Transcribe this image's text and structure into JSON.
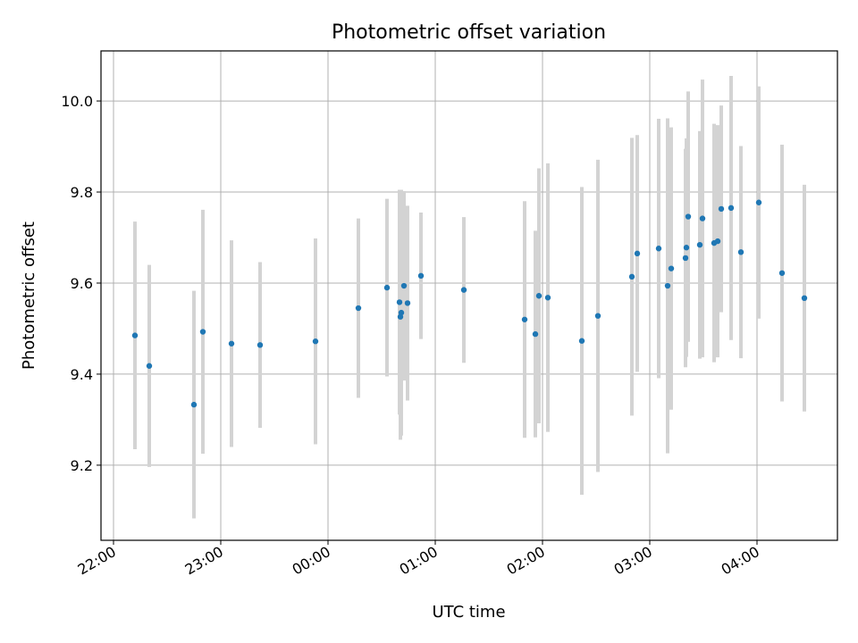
{
  "chart_data": {
    "type": "scatter",
    "title": "Photometric offset variation",
    "xlabel": "UTC time",
    "ylabel": "Photometric offset",
    "x_tick_labels": [
      "22:00",
      "23:00",
      "00:00",
      "01:00",
      "02:00",
      "03:00",
      "04:00"
    ],
    "x_tick_minutes": [
      0,
      60,
      120,
      180,
      240,
      300,
      360
    ],
    "y_ticks": [
      9.2,
      9.4,
      9.6,
      9.8,
      10.0
    ],
    "y_tick_labels": [
      "9.2",
      "9.4",
      "9.6",
      "9.8",
      "10.0"
    ],
    "xlim_minutes": [
      -7,
      405
    ],
    "ylim": [
      9.035,
      10.11
    ],
    "grid": true,
    "point_color": "#1f77b4",
    "errorbar_color": "#d3d3d3",
    "points": [
      {
        "t": 12,
        "y": 9.485,
        "yerr": 0.25
      },
      {
        "t": 20,
        "y": 9.418,
        "yerr": 0.222
      },
      {
        "t": 45,
        "y": 9.333,
        "yerr": 0.25
      },
      {
        "t": 50,
        "y": 9.493,
        "yerr": 0.268
      },
      {
        "t": 66,
        "y": 9.467,
        "yerr": 0.227
      },
      {
        "t": 82,
        "y": 9.464,
        "yerr": 0.182
      },
      {
        "t": 113,
        "y": 9.472,
        "yerr": 0.226
      },
      {
        "t": 137,
        "y": 9.545,
        "yerr": 0.197
      },
      {
        "t": 153,
        "y": 9.59,
        "yerr": 0.195
      },
      {
        "t": 160,
        "y": 9.558,
        "yerr": 0.247
      },
      {
        "t": 160.5,
        "y": 9.526,
        "yerr": 0.27
      },
      {
        "t": 161,
        "y": 9.535,
        "yerr": 0.27
      },
      {
        "t": 162.5,
        "y": 9.594,
        "yerr": 0.208
      },
      {
        "t": 164.5,
        "y": 9.556,
        "yerr": 0.214
      },
      {
        "t": 172,
        "y": 9.616,
        "yerr": 0.139
      },
      {
        "t": 196,
        "y": 9.585,
        "yerr": 0.16
      },
      {
        "t": 230,
        "y": 9.52,
        "yerr": 0.26
      },
      {
        "t": 236,
        "y": 9.488,
        "yerr": 0.227
      },
      {
        "t": 238,
        "y": 9.572,
        "yerr": 0.28
      },
      {
        "t": 243,
        "y": 9.568,
        "yerr": 0.295
      },
      {
        "t": 262,
        "y": 9.473,
        "yerr": 0.338
      },
      {
        "t": 271,
        "y": 9.528,
        "yerr": 0.343
      },
      {
        "t": 290,
        "y": 9.614,
        "yerr": 0.305
      },
      {
        "t": 293,
        "y": 9.665,
        "yerr": 0.26
      },
      {
        "t": 305,
        "y": 9.676,
        "yerr": 0.285
      },
      {
        "t": 310,
        "y": 9.594,
        "yerr": 0.368
      },
      {
        "t": 312,
        "y": 9.632,
        "yerr": 0.31
      },
      {
        "t": 320,
        "y": 9.655,
        "yerr": 0.24
      },
      {
        "t": 320.5,
        "y": 9.678,
        "yerr": 0.24
      },
      {
        "t": 321.5,
        "y": 9.746,
        "yerr": 0.275
      },
      {
        "t": 328,
        "y": 9.684,
        "yerr": 0.25
      },
      {
        "t": 329.5,
        "y": 9.742,
        "yerr": 0.305
      },
      {
        "t": 336,
        "y": 9.688,
        "yerr": 0.262
      },
      {
        "t": 338,
        "y": 9.692,
        "yerr": 0.255
      },
      {
        "t": 340,
        "y": 9.763,
        "yerr": 0.227
      },
      {
        "t": 345.5,
        "y": 9.765,
        "yerr": 0.29
      },
      {
        "t": 351,
        "y": 9.668,
        "yerr": 0.233
      },
      {
        "t": 361,
        "y": 9.777,
        "yerr": 0.255
      },
      {
        "t": 374,
        "y": 9.622,
        "yerr": 0.282
      },
      {
        "t": 386.5,
        "y": 9.567,
        "yerr": 0.249
      }
    ]
  }
}
